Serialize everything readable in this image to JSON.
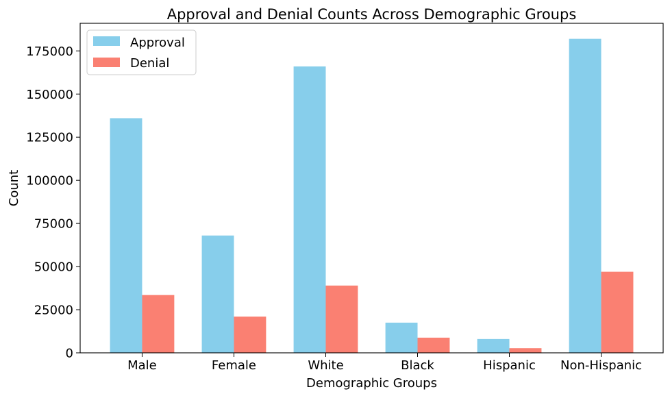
{
  "chart_data": {
    "type": "bar",
    "title": "Approval and Denial Counts Across Demographic Groups",
    "xlabel": "Demographic Groups",
    "ylabel": "Count",
    "categories": [
      "Male",
      "Female",
      "White",
      "Black",
      "Hispanic",
      "Non-Hispanic"
    ],
    "series": [
      {
        "name": "Approval",
        "color": "#87CEEB",
        "values": [
          136000,
          68000,
          166000,
          17500,
          8000,
          182000
        ]
      },
      {
        "name": "Denial",
        "color": "#FA8072",
        "values": [
          33500,
          21000,
          39000,
          8800,
          2700,
          47000
        ]
      }
    ],
    "ylim": [
      0,
      191000
    ],
    "yticks": [
      0,
      25000,
      50000,
      75000,
      100000,
      125000,
      150000,
      175000
    ],
    "ytick_labels": [
      "0",
      "25000",
      "50000",
      "75000",
      "100000",
      "125000",
      "150000",
      "175000"
    ],
    "grid": false,
    "legend_position": "top-left"
  }
}
